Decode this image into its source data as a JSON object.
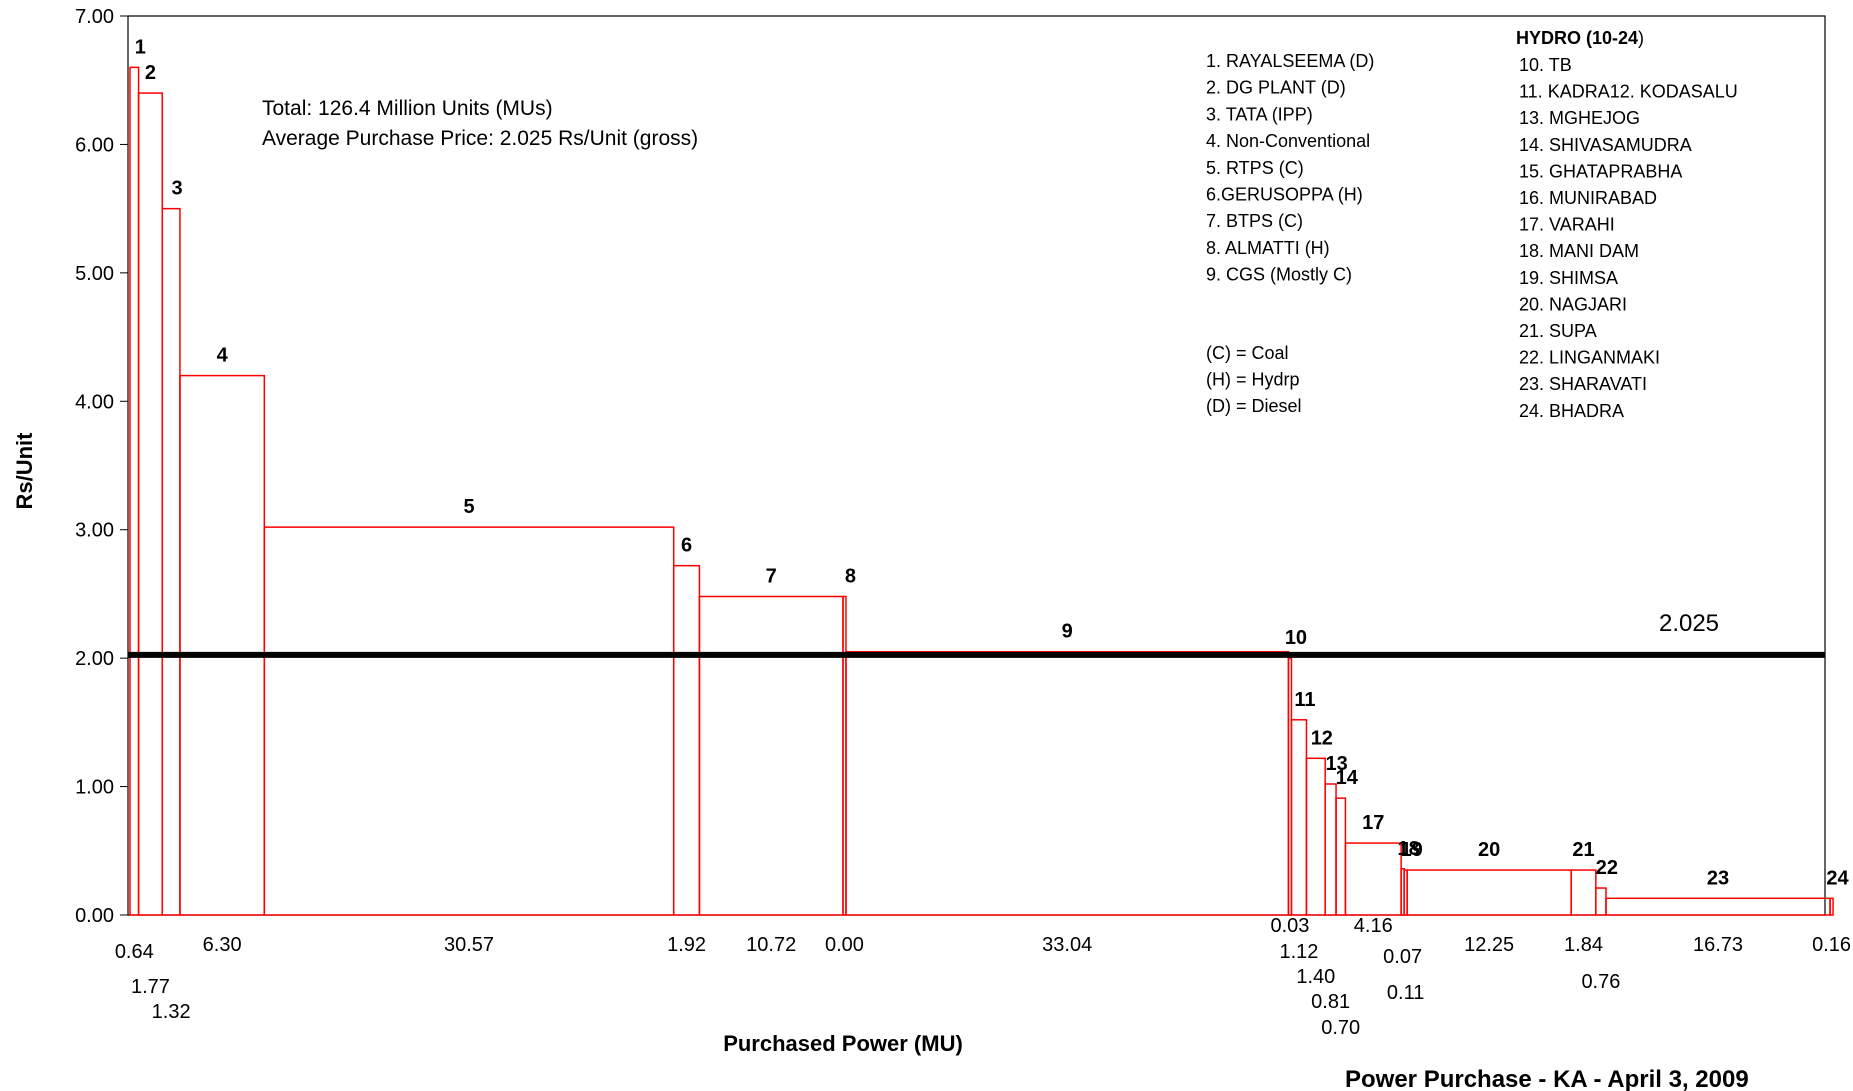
{
  "chart_data": {
    "type": "bar",
    "subtype": "stepped-cost-curve",
    "title": "",
    "xlabel": "Purchased Power (MU)",
    "ylabel": "Rs/Unit",
    "ylim": [
      0,
      7
    ],
    "yticks": [
      "0.00",
      "1.00",
      "2.00",
      "3.00",
      "4.00",
      "5.00",
      "6.00",
      "7.00"
    ],
    "grid": false,
    "bar_color": "#ff0000",
    "average_line": {
      "value": 2.025,
      "label": "2.025",
      "color": "#000000"
    },
    "annotations": [
      "Total: 126.4 Million Units (MUs)",
      "Average Purchase Price: 2.025 Rs/Unit (gross)"
    ],
    "blocks": [
      {
        "id": "1",
        "width": 0.64,
        "price": 6.6
      },
      {
        "id": "2",
        "width": 1.77,
        "price": 6.4
      },
      {
        "id": "3",
        "width": 1.32,
        "price": 5.5
      },
      {
        "id": "4",
        "width": 6.3,
        "price": 4.2
      },
      {
        "id": "5",
        "width": 30.57,
        "price": 3.02
      },
      {
        "id": "6",
        "width": 1.92,
        "price": 2.72
      },
      {
        "id": "7",
        "width": 10.72,
        "price": 2.48
      },
      {
        "id": "8",
        "width": 0.0,
        "price": 2.48
      },
      {
        "id": "9",
        "width": 33.04,
        "price": 2.05
      },
      {
        "id": "10",
        "width": 0.03,
        "price": 2.0
      },
      {
        "id": "11",
        "width": 1.12,
        "price": 1.52
      },
      {
        "id": "12",
        "width": 1.4,
        "price": 1.22
      },
      {
        "id": "13",
        "width": 0.81,
        "price": 1.02
      },
      {
        "id": "14",
        "width": 0.7,
        "price": 0.91
      },
      {
        "id": "17",
        "width": 4.16,
        "price": 0.56
      },
      {
        "id": "18",
        "width": 0.07,
        "price": 0.36
      },
      {
        "id": "19",
        "width": 0.11,
        "price": 0.35
      },
      {
        "id": "20",
        "width": 12.25,
        "price": 0.35
      },
      {
        "id": "21",
        "width": 1.84,
        "price": 0.35
      },
      {
        "id": "22",
        "width": 0.76,
        "price": 0.21
      },
      {
        "id": "23",
        "width": 16.73,
        "price": 0.13
      },
      {
        "id": "24",
        "width": 0.16,
        "price": 0.13
      }
    ],
    "legend": {
      "left": [
        "1. RAYALSEEMA (D)",
        "2. DG  PLANT (D)",
        "3. TATA (IPP)",
        "4. Non-Conventional",
        "5. RTPS (C)",
        "6.GERUSOPPA (H)",
        "7. BTPS (C)",
        "8. ALMATTI (H)",
        "9. CGS (Mostly C)"
      ],
      "key": [
        "(C) = Coal",
        "(H) = Hydrp",
        "(D) = Diesel"
      ],
      "hydro_header_bold": "HYDRO (10-24",
      "hydro_header_tail": ")",
      "hydro": [
        "10. TB",
        "11. KADRA12. KODASALU",
        "13. MGHEJOG",
        "14. SHIVASAMUDRA",
        "15. GHATAPRABHA",
        "16. MUNIRABAD",
        "17. VARAHI",
        "18. MANI DAM",
        "19. SHIMSA",
        "20. NAGJARI",
        "21. SUPA",
        "22. LINGANMAKI",
        "23. SHARAVATI",
        "24. BHADRA"
      ]
    }
  },
  "footer": "Power Purchase - KA - April 3, 2009"
}
